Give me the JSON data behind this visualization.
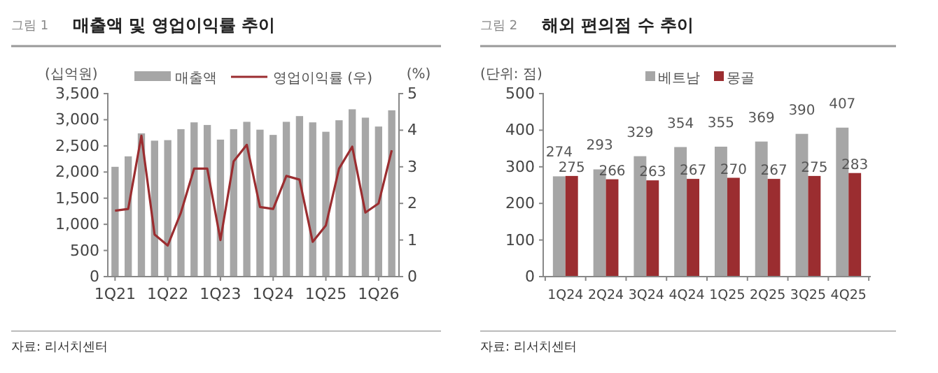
{
  "chart_data": [
    {
      "type": "bar",
      "title": "매출액 및 영업이익률 추이",
      "ylabel": "(십억원)",
      "y2label": "(%)",
      "annotations": [
        "그림 1",
        "자료: 리서치센터"
      ],
      "categories": [
        "1Q21",
        null,
        null,
        null,
        "1Q22",
        null,
        null,
        null,
        "1Q23",
        null,
        null,
        null,
        "1Q24",
        null,
        null,
        null,
        "1Q25",
        null,
        null,
        null,
        "1Q26",
        null
      ],
      "series": [
        {
          "name": "매출액",
          "color": "#a6a6a6",
          "values": [
            2100,
            2300,
            2740,
            2600,
            2610,
            2820,
            2950,
            2900,
            2620,
            2820,
            2960,
            2810,
            2710,
            2960,
            3070,
            2950,
            2770,
            2990,
            3200,
            3040,
            2870,
            3180
          ]
        },
        {
          "name": "영업이익률 (우)",
          "type": "line",
          "axis": "y2",
          "color": "#9b2d30",
          "values": [
            1.8,
            1.85,
            3.85,
            1.15,
            0.85,
            1.75,
            2.95,
            2.95,
            1.0,
            3.15,
            3.6,
            1.9,
            1.85,
            2.75,
            2.65,
            0.95,
            1.4,
            2.95,
            3.55,
            1.75,
            2.0,
            3.45
          ]
        }
      ],
      "ylim": [
        0,
        3500
      ],
      "yticks": [
        {
          "value": 0,
          "label": "0"
        },
        {
          "value": 500,
          "label": "500"
        },
        {
          "value": 1000,
          "label": "1,000"
        },
        {
          "value": 1500,
          "label": "1,500"
        },
        {
          "value": 2000,
          "label": "2,000"
        },
        {
          "value": 2500,
          "label": "2,500"
        },
        {
          "value": 3000,
          "label": "3,000"
        },
        {
          "value": 3500,
          "label": "3,500"
        }
      ],
      "y2lim": [
        0,
        5
      ],
      "y2ticks": [
        0,
        1,
        2,
        3,
        4,
        5
      ],
      "legend": "top",
      "grid": false,
      "marker": "none",
      "line_style": "solid"
    },
    {
      "type": "bar",
      "title": "해외 편의점 수 추이",
      "ylabel": "(단위: 점)",
      "annotations": [
        "그림 2",
        "자료: 리서치센터"
      ],
      "categories": [
        "1Q24",
        "2Q24",
        "3Q24",
        "4Q24",
        "1Q25",
        "2Q25",
        "3Q25",
        "4Q25"
      ],
      "series": [
        {
          "name": "베트남",
          "color": "#a6a6a6",
          "values": [
            274,
            293,
            329,
            354,
            355,
            369,
            390,
            407
          ]
        },
        {
          "name": "몽골",
          "color": "#9b2d30",
          "values": [
            275,
            266,
            263,
            267,
            270,
            267,
            275,
            283
          ]
        }
      ],
      "ylim": [
        0,
        500
      ],
      "yticks": [
        0,
        100,
        200,
        300,
        400,
        500
      ],
      "legend": "top",
      "grid": false,
      "data_labels": true
    }
  ]
}
